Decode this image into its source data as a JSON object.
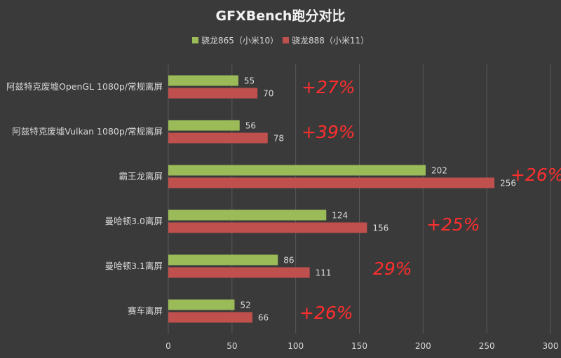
{
  "chart_data": {
    "type": "bar",
    "orientation": "horizontal",
    "title": "GFXBench跑分对比",
    "categories": [
      "阿兹特克废墟OpenGL 1080p/常规离屏",
      "阿兹特克废墟Vulkan 1080p/常规离屏",
      "霸王龙离屏",
      "曼哈顿3.0离屏",
      "曼哈顿3.1离屏",
      "赛车离屏"
    ],
    "series": [
      {
        "name": "骁龙865（小米10）",
        "color": "#9bbb59",
        "values": [
          55,
          56,
          202,
          124,
          86,
          52
        ]
      },
      {
        "name": "骁龙888（小米11）",
        "color": "#c0504d",
        "values": [
          70,
          78,
          256,
          156,
          111,
          66
        ]
      }
    ],
    "xlim": [
      0,
      300
    ],
    "xticks": [
      0,
      50,
      100,
      150,
      200,
      250,
      300
    ],
    "grid": true,
    "legend": "top-center",
    "annotations": [
      "+27%",
      "+39%",
      "+26%",
      "+25%",
      "29%",
      "+26%"
    ]
  }
}
